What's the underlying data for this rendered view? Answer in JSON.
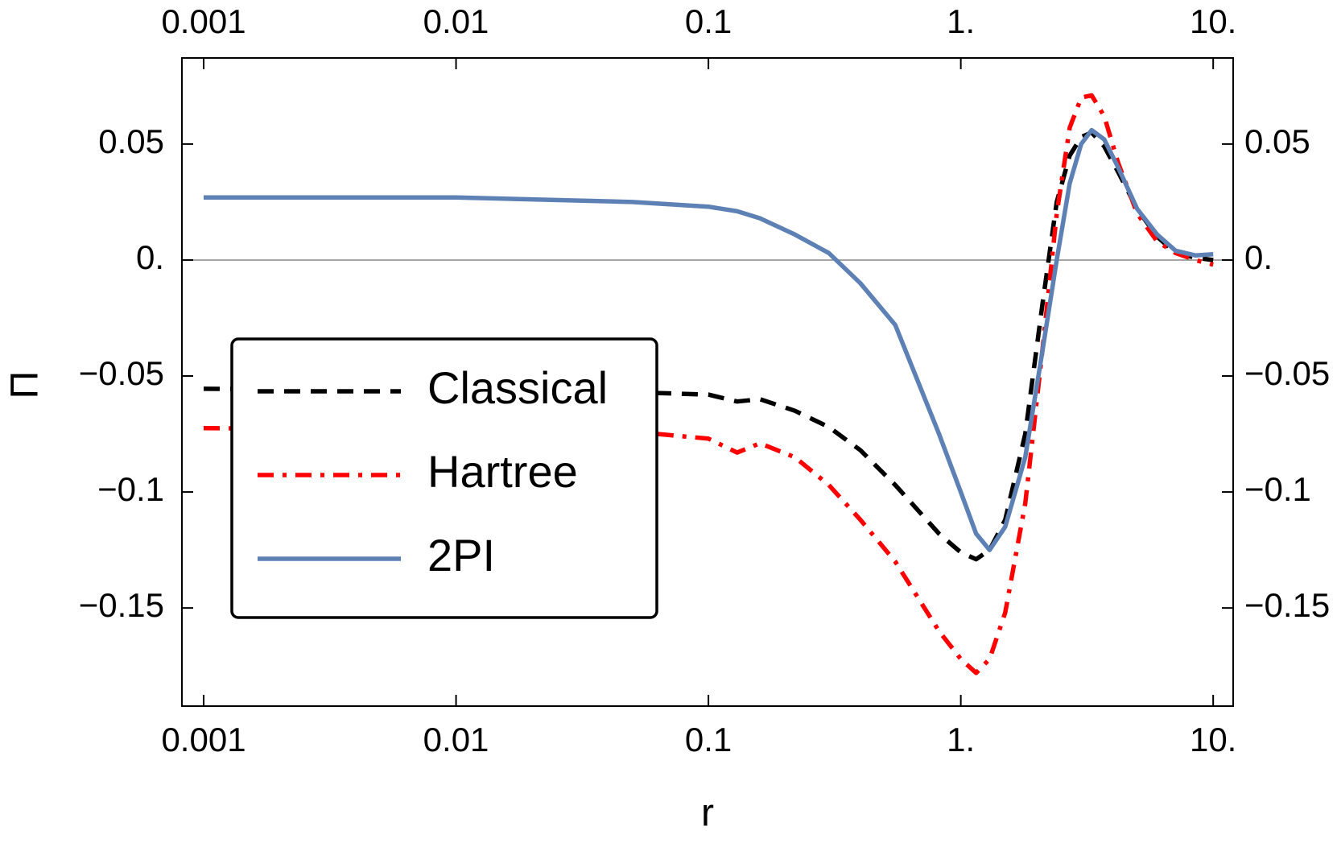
{
  "chart_data": {
    "type": "line",
    "x_label": "r",
    "y_label": "Π",
    "x_scale": "log",
    "xlim": [
      0.00082,
      12
    ],
    "xticks": [
      0.001,
      0.01,
      0.1,
      {
        "value": 1,
        "label": "1."
      },
      {
        "value": 10,
        "label": "10."
      }
    ],
    "ylim": [
      -0.1923,
      0.0871
    ],
    "yticks": [
      {
        "value": -0.15,
        "label": "−0.15"
      },
      {
        "value": -0.1,
        "label": "−0.1"
      },
      {
        "value": -0.05,
        "label": "−0.05"
      },
      {
        "value": 0,
        "label": "0."
      },
      0.05
    ],
    "zero_line": true,
    "legend": "left",
    "mirror_axes": true,
    "x": [
      0.001,
      0.01,
      0.05,
      0.1,
      0.13,
      0.16,
      0.22,
      0.3,
      0.4,
      0.55,
      0.82,
      1.0,
      1.15,
      1.3,
      1.5,
      1.8,
      2.1,
      2.4,
      2.7,
      3.0,
      3.3,
      3.7,
      4.2,
      5.0,
      6.0,
      7.1,
      8.5,
      10
    ],
    "series": [
      {
        "name": "Classical",
        "color": "#000000",
        "dash": "dashed",
        "values": [
          -0.0555,
          -0.056,
          -0.057,
          -0.058,
          -0.061,
          -0.06,
          -0.065,
          -0.072,
          -0.082,
          -0.097,
          -0.118,
          -0.126,
          -0.129,
          -0.125,
          -0.112,
          -0.075,
          -0.02,
          0.025,
          0.045,
          0.053,
          0.055,
          0.049,
          0.038,
          0.022,
          0.01,
          0.003,
          0.001,
          0
        ]
      },
      {
        "name": "Hartree",
        "color": "#ff0000",
        "dash": "dashdot",
        "values": [
          -0.0725,
          -0.073,
          -0.074,
          -0.077,
          -0.083,
          -0.079,
          -0.085,
          -0.097,
          -0.112,
          -0.13,
          -0.16,
          -0.172,
          -0.178,
          -0.172,
          -0.152,
          -0.105,
          -0.04,
          0.02,
          0.057,
          0.07,
          0.071,
          0.062,
          0.042,
          0.02,
          0.008,
          0.003,
          0.0,
          -0.002
        ]
      },
      {
        "name": "2PI",
        "color": "#5e81b5",
        "dash": "solid",
        "values": [
          0.027,
          0.027,
          0.025,
          0.023,
          0.021,
          0.018,
          0.011,
          0.003,
          -0.01,
          -0.028,
          -0.075,
          -0.1,
          -0.118,
          -0.125,
          -0.115,
          -0.085,
          -0.04,
          0,
          0.033,
          0.05,
          0.056,
          0.052,
          0.04,
          0.022,
          0.011,
          0.004,
          0.002,
          0.0025
        ]
      }
    ]
  }
}
